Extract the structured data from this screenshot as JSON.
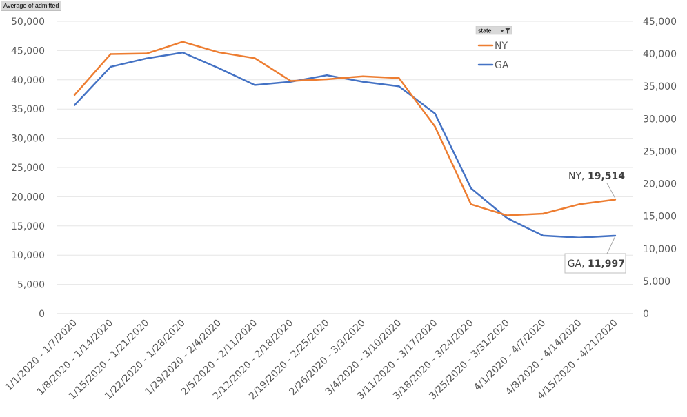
{
  "field_button": {
    "label": "Average of admitted"
  },
  "chart_data": {
    "type": "line",
    "title": "",
    "xlabel": "",
    "ylabel": "",
    "categories": [
      "1/1/2020 - 1/7/2020",
      "1/8/2020 - 1/14/2020",
      "1/15/2020 - 1/21/2020",
      "1/22/2020 - 1/28/2020",
      "1/29/2020 - 2/4/2020",
      "2/5/2020 - 2/11/2020",
      "2/12/2020 - 2/18/2020",
      "2/19/2020 - 2/25/2020",
      "2/26/2020 - 3/3/2020",
      "3/4/2020 - 3/10/2020",
      "3/11/2020 - 3/17/2020",
      "3/18/2020 - 3/24/2020",
      "3/25/2020 - 3/31/2020",
      "4/1/2020 - 4/7/2020",
      "4/8/2020 - 4/14/2020",
      "4/15/2020 - 4/21/2020"
    ],
    "y_left": {
      "range": [
        0,
        50000
      ],
      "ticks": [
        "0",
        "5,000",
        "10,000",
        "15,000",
        "20,000",
        "25,000",
        "30,000",
        "35,000",
        "40,000",
        "45,000",
        "50,000"
      ]
    },
    "y_right": {
      "range": [
        0,
        45000
      ],
      "ticks": [
        "0",
        "5,000",
        "10,000",
        "15,000",
        "20,000",
        "25,000",
        "30,000",
        "35,000",
        "40,000",
        "45,000"
      ]
    },
    "grid": true,
    "legend": {
      "title": "state",
      "position": "top-right",
      "entries": [
        "NY",
        "GA"
      ]
    },
    "series": [
      {
        "name": "NY",
        "axis": "left",
        "color": "#ed7d31",
        "values": [
          37400,
          44400,
          44500,
          46500,
          44700,
          43700,
          39800,
          40100,
          40600,
          40300,
          32000,
          18700,
          16800,
          17100,
          18700,
          19514
        ]
      },
      {
        "name": "GA",
        "axis": "right",
        "color": "#4472c4",
        "values": [
          32100,
          38000,
          39300,
          40200,
          37800,
          35200,
          35700,
          36700,
          35700,
          35000,
          30800,
          19300,
          14700,
          12000,
          11700,
          11997
        ]
      }
    ],
    "annotations": [
      {
        "series": "NY",
        "name": "NY",
        "sep": ", ",
        "value": "19,514"
      },
      {
        "series": "GA",
        "name": "GA",
        "sep": ", ",
        "value": "11,997"
      }
    ]
  }
}
